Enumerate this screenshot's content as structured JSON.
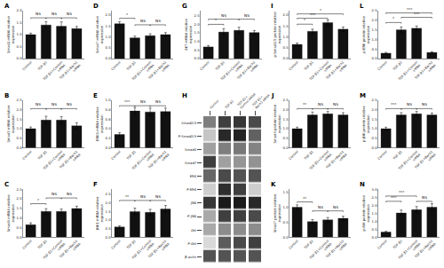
{
  "chart_data": [
    {
      "type": "bar",
      "title": "A",
      "ylabel": "Smad2 mRNA relative\nexpression",
      "categories": [
        "Control",
        "TGF-β1",
        "TGF-β1+Control\nsiRNA",
        "TGF-β1+Bach1\nsiRNA"
      ],
      "values": [
        1.0,
        1.4,
        1.35,
        1.25
      ],
      "errors": [
        0.06,
        0.14,
        0.18,
        0.09
      ],
      "color": "#111111",
      "grid": false,
      "ylim": [
        0,
        2.0
      ],
      "yticks": [
        {
          "value": 0,
          "label": "0.0"
        },
        0.5,
        {
          "value": 1.0,
          "label": "1.0"
        },
        1.5,
        {
          "value": 2.0,
          "label": "2.0"
        }
      ],
      "annotations": [
        {
          "from": "Control",
          "to": "TGF-β1",
          "y": 1.7,
          "text": "NS"
        },
        {
          "from": "TGF-β1",
          "to": "TGF-β1+Control\nsiRNA",
          "y": 1.7,
          "text": "NS"
        },
        {
          "from": "TGF-β1+Control\nsiRNA",
          "to": "TGF-β1+Bach1\nsiRNA",
          "y": 1.7,
          "text": "NS"
        }
      ]
    },
    {
      "type": "bar",
      "title": "B",
      "ylabel": "Smad3 mRNA relative\nexpression",
      "categories": [
        "Control",
        "TGF-β1",
        "TGF-β1+Control\nsiRNA",
        "TGF-β1+Bach1\nsiRNA"
      ],
      "values": [
        1.0,
        1.45,
        1.45,
        1.15
      ],
      "errors": [
        0.09,
        0.2,
        0.18,
        0.16
      ],
      "color": "#111111",
      "grid": false,
      "ylim": [
        0,
        2.5
      ],
      "yticks": [
        {
          "value": 0,
          "label": "0.0"
        },
        0.5,
        {
          "value": 1.0,
          "label": "1.0"
        },
        1.5,
        {
          "value": 2.0,
          "label": "2.0"
        },
        2.5
      ],
      "annotations": [
        {
          "from": "Control",
          "to": "TGF-β1",
          "y": 2.05,
          "text": "NS"
        },
        {
          "from": "TGF-β1",
          "to": "TGF-β1+Control\nsiRNA",
          "y": 2.05,
          "text": "NS"
        },
        {
          "from": "TGF-β1+Control\nsiRNA",
          "to": "TGF-β1+Bach1\nsiRNA",
          "y": 2.05,
          "text": "NS"
        }
      ]
    },
    {
      "type": "bar",
      "title": "C",
      "ylabel": "Smad4 mRNA relative\nexpression",
      "categories": [
        "Control",
        "TGF-β1",
        "TGF-β1+Control\nsiRNA",
        "TGF-β1+Bach1\nsiRNA"
      ],
      "values": [
        0.65,
        1.35,
        1.35,
        1.5
      ],
      "errors": [
        0.1,
        0.14,
        0.12,
        0.12
      ],
      "color": "#111111",
      "grid": false,
      "ylim": [
        0,
        2.5
      ],
      "yticks": [
        {
          "value": 0,
          "label": "0.0"
        },
        0.5,
        {
          "value": 1.0,
          "label": "1.0"
        },
        1.5,
        {
          "value": 2.0,
          "label": "2.0"
        },
        2.5
      ],
      "annotations": [
        {
          "from": "Control",
          "to": "TGF-β1",
          "y": 1.75,
          "text": "*"
        },
        {
          "from": "TGF-β1",
          "to": "TGF-β1+Control\nsiRNA",
          "y": 2.05,
          "text": "NS"
        },
        {
          "from": "TGF-β1+Control\nsiRNA",
          "to": "TGF-β1+Bach1\nsiRNA",
          "y": 2.05,
          "text": "NS"
        }
      ]
    },
    {
      "type": "bar",
      "title": "D",
      "ylabel": "Smad7 mRNA relative\nexpression",
      "categories": [
        "Control",
        "TGF-β1",
        "TGF-β1+Control\nsiRNA",
        "TGF-β1+Bach1\nsiRNA"
      ],
      "values": [
        1.6,
        0.95,
        1.05,
        1.1
      ],
      "errors": [
        0.1,
        0.08,
        0.09,
        0.09
      ],
      "color": "#111111",
      "grid": false,
      "ylim": [
        0,
        2.2
      ],
      "yticks": [
        {
          "value": 0,
          "label": "0.0"
        },
        0.5,
        {
          "value": 1.0,
          "label": "1.0"
        },
        1.5,
        {
          "value": 2.0,
          "label": "2.0"
        }
      ],
      "annotations": [
        {
          "from": "Control",
          "to": "TGF-β1",
          "y": 1.85,
          "text": "*"
        },
        {
          "from": "TGF-β1",
          "to": "TGF-β1+Control\nsiRNA",
          "y": 1.55,
          "text": "NS"
        },
        {
          "from": "TGF-β1+Control\nsiRNA",
          "to": "TGF-β1+Bach1\nsiRNA",
          "y": 1.55,
          "text": "NS"
        }
      ]
    },
    {
      "type": "bar",
      "title": "E",
      "ylabel": "ERK1 mRNA relative\nexpression",
      "categories": [
        "Control",
        "TGF-β1",
        "TGF-β1+Control\nsiRNA",
        "TGF-β1+Bach1\nsiRNA"
      ],
      "values": [
        0.28,
        0.77,
        0.75,
        0.76
      ],
      "errors": [
        0.04,
        0.07,
        0.08,
        0.07
      ],
      "color": "#111111",
      "grid": false,
      "ylim": [
        0,
        1.0
      ],
      "yticks": [
        {
          "value": 0,
          "label": "0.0"
        },
        0.2,
        0.4,
        0.6,
        0.8,
        {
          "value": 1.0,
          "label": "1.0"
        }
      ],
      "annotations": [
        {
          "from": "Control",
          "to": "TGF-β1",
          "y": 0.88,
          "text": "***"
        },
        {
          "from": "TGF-β1",
          "to": "TGF-β1+Control\nsiRNA",
          "y": 0.88,
          "text": "NS"
        },
        {
          "from": "TGF-β1+Control\nsiRNA",
          "to": "TGF-β1+Bach1\nsiRNA",
          "y": 0.88,
          "text": "NS"
        }
      ]
    },
    {
      "type": "bar",
      "title": "F",
      "ylabel": "JNK1 mRNA relative\nexpression",
      "categories": [
        "Control",
        "TGF-β1",
        "TGF-β1+Control\nsiRNA",
        "TGF-β1+Bach1\nsiRNA"
      ],
      "values": [
        0.6,
        1.5,
        1.45,
        1.65
      ],
      "errors": [
        0.07,
        0.2,
        0.18,
        0.2
      ],
      "color": "#111111",
      "grid": false,
      "ylim": [
        0,
        2.8
      ],
      "yticks": [
        {
          "value": 0,
          "label": "0.0"
        },
        0.5,
        {
          "value": 1.0,
          "label": "1.0"
        },
        1.5,
        {
          "value": 2.0,
          "label": "2.0"
        },
        2.5
      ],
      "annotations": [
        {
          "from": "Control",
          "to": "TGF-β1",
          "y": 2.15,
          "text": "**"
        },
        {
          "from": "TGF-β1",
          "to": "TGF-β1+Control\nsiRNA",
          "y": 2.15,
          "text": "NS"
        },
        {
          "from": "TGF-β1+Control\nsiRNA",
          "to": "TGF-β1+Bach1\nsiRNA",
          "y": 2.15,
          "text": "NS"
        }
      ]
    },
    {
      "type": "bar",
      "title": "G",
      "ylabel": "AKT mRNA relative\nexpression",
      "categories": [
        "Control",
        "TGF-β1",
        "TGF-β1+Control\nsiRNA",
        "TGF-β1+Bach1\nsiRNA"
      ],
      "values": [
        0.68,
        1.55,
        1.65,
        1.52
      ],
      "errors": [
        0.08,
        0.2,
        0.18,
        0.12
      ],
      "color": "#111111",
      "grid": false,
      "ylim": [
        0,
        2.8
      ],
      "yticks": [
        {
          "value": 0,
          "label": "0.0"
        },
        0.5,
        {
          "value": 1.0,
          "label": "1.0"
        },
        1.5,
        {
          "value": 2.0,
          "label": "2.0"
        },
        2.5
      ],
      "annotations": [
        {
          "from": "Control",
          "to": "TGF-β1",
          "y": 2.0,
          "text": "*"
        },
        {
          "from": "Control",
          "to": "TGF-β1+Control\nsiRNA",
          "y": 2.3,
          "text": "NS"
        },
        {
          "from": "TGF-β1+Control\nsiRNA",
          "to": "TGF-β1+Bach1\nsiRNA",
          "y": 2.3,
          "text": "NS"
        }
      ]
    },
    {
      "type": "heatmap",
      "title": "H",
      "x": [
        "Control",
        "TGF-β1",
        "TGF-β1+\nControl siRNA",
        "TGF-β1+\nBach1 siRNA"
      ],
      "y": [
        "Smad2/3",
        "P-Smad2/3",
        "Smad4",
        "Smad7",
        "ERK",
        "P-ERK",
        "JNK",
        "P-JNK",
        "Akt",
        "P-Akt",
        "β-actin"
      ],
      "cells": [
        [
          0.5,
          0.72,
          0.75,
          0.68
        ],
        [
          0.25,
          0.8,
          0.82,
          0.6
        ],
        [
          0.38,
          0.5,
          0.52,
          0.48
        ],
        [
          0.72,
          0.38,
          0.42,
          0.43
        ],
        [
          0.58,
          0.68,
          0.65,
          0.65
        ],
        [
          0.22,
          0.78,
          0.72,
          0.22
        ],
        [
          0.75,
          0.85,
          0.85,
          0.8
        ],
        [
          0.35,
          0.72,
          0.72,
          0.68
        ],
        [
          0.35,
          0.45,
          0.45,
          0.45
        ],
        [
          0.18,
          0.62,
          0.68,
          0.72
        ],
        [
          0.65,
          0.65,
          0.65,
          0.65
        ]
      ]
    },
    {
      "type": "bar",
      "title": "I",
      "ylabel": "p-Smad2/3 protein relative\nexpression",
      "categories": [
        "Control",
        "TGF-β1",
        "TGF-β1+Control\nsiRNA",
        "TGF-β1+Bach1\nsiRNA"
      ],
      "values": [
        0.65,
        1.25,
        1.65,
        1.35
      ],
      "errors": [
        0.06,
        0.1,
        0.12,
        0.1
      ],
      "color": "#111111",
      "grid": false,
      "ylim": [
        0,
        2.2
      ],
      "yticks": [
        {
          "value": 0,
          "label": "0.0"
        },
        0.5,
        {
          "value": 1.0,
          "label": "1.0"
        },
        1.5,
        {
          "value": 2.0,
          "label": "2.0"
        }
      ],
      "annotations": [
        {
          "from": "Control",
          "to": "TGF-β1",
          "y": 1.58,
          "text": "*"
        },
        {
          "from": "Control",
          "to": "TGF-β1+Control\nsiRNA",
          "y": 1.85,
          "text": "***"
        },
        {
          "from": "Control",
          "to": "TGF-β1+Bach1\nsiRNA",
          "y": 2.05,
          "text": "*"
        }
      ]
    },
    {
      "type": "bar",
      "title": "J",
      "ylabel": "Smad4 protein relative\nexpression",
      "categories": [
        "Control",
        "TGF-β1",
        "TGF-β1+Control\nsiRNA",
        "TGF-β1+Bach1\nsiRNA"
      ],
      "values": [
        1.0,
        1.72,
        1.78,
        1.72
      ],
      "errors": [
        0.08,
        0.15,
        0.12,
        0.12
      ],
      "color": "#111111",
      "grid": false,
      "ylim": [
        0,
        2.5
      ],
      "yticks": [
        {
          "value": 0,
          "label": "0.0"
        },
        0.5,
        {
          "value": 1.0,
          "label": "1.0"
        },
        1.5,
        {
          "value": 2.0,
          "label": "2.0"
        },
        2.5
      ],
      "annotations": [
        {
          "from": "Control",
          "to": "TGF-β1",
          "y": 2.05,
          "text": "**"
        },
        {
          "from": "TGF-β1",
          "to": "TGF-β1+Control\nsiRNA",
          "y": 2.05,
          "text": "NS"
        },
        {
          "from": "TGF-β1+Control\nsiRNA",
          "to": "TGF-β1+Bach1\nsiRNA",
          "y": 2.05,
          "text": "NS"
        }
      ]
    },
    {
      "type": "bar",
      "title": "K",
      "ylabel": "Smad7 protein relative\nexpression",
      "categories": [
        "Control",
        "TGF-β1",
        "TGF-β1+Control\nsiRNA",
        "TGF-β1+Bach1\nsiRNA"
      ],
      "values": [
        1.0,
        0.52,
        0.58,
        0.63
      ],
      "errors": [
        0.08,
        0.07,
        0.08,
        0.07
      ],
      "color": "#111111",
      "grid": false,
      "ylim": [
        0,
        1.6
      ],
      "yticks": [
        {
          "value": 0,
          "label": "0.0"
        },
        0.5,
        {
          "value": 1.0,
          "label": "1.0"
        },
        1.5
      ],
      "annotations": [
        {
          "from": "Control",
          "to": "TGF-β1",
          "y": 1.18,
          "text": "**"
        },
        {
          "from": "TGF-β1",
          "to": "TGF-β1+Control\nsiRNA",
          "y": 0.88,
          "text": "NS"
        },
        {
          "from": "TGF-β1+Control\nsiRNA",
          "to": "TGF-β1+Bach1\nsiRNA",
          "y": 0.88,
          "text": "NS"
        }
      ]
    },
    {
      "type": "bar",
      "title": "L",
      "ylabel": "p-ERK protein relative\nexpression",
      "categories": [
        "Control",
        "TGF-β1",
        "TGF-β1+Control\nsiRNA",
        "TGF-β1+Bach1\nsiRNA"
      ],
      "values": [
        0.28,
        1.5,
        1.58,
        0.32
      ],
      "errors": [
        0.04,
        0.15,
        0.12,
        0.04
      ],
      "color": "#111111",
      "grid": false,
      "ylim": [
        0,
        2.5
      ],
      "yticks": [
        {
          "value": 0,
          "label": "0.0"
        },
        0.5,
        {
          "value": 1.0,
          "label": "1.0"
        },
        1.5,
        {
          "value": 2.0,
          "label": "2.0"
        },
        2.5
      ],
      "annotations": [
        {
          "from": "Control",
          "to": "TGF-β1",
          "y": 1.88,
          "text": "*"
        },
        {
          "from": "TGF-β1",
          "to": "TGF-β1+Bach1\nsiRNA",
          "y": 2.15,
          "text": "***"
        },
        {
          "from": "Control",
          "to": "TGF-β1+Bach1\nsiRNA",
          "y": 2.38,
          "text": "***"
        }
      ]
    },
    {
      "type": "bar",
      "title": "M",
      "ylabel": "p-JNK protein relative\nexpression",
      "categories": [
        "Control",
        "TGF-β1",
        "TGF-β1+Control\nsiRNA",
        "TGF-β1+Bach1\nsiRNA"
      ],
      "values": [
        1.0,
        1.72,
        1.78,
        1.72
      ],
      "errors": [
        0.08,
        0.12,
        0.12,
        0.1
      ],
      "color": "#111111",
      "grid": false,
      "ylim": [
        0,
        2.5
      ],
      "yticks": [
        {
          "value": 0,
          "label": "0.0"
        },
        0.5,
        {
          "value": 1.0,
          "label": "1.0"
        },
        1.5,
        {
          "value": 2.0,
          "label": "2.0"
        },
        2.5
      ],
      "annotations": [
        {
          "from": "Control",
          "to": "TGF-β1",
          "y": 2.05,
          "text": "***"
        },
        {
          "from": "TGF-β1",
          "to": "TGF-β1+Control\nsiRNA",
          "y": 2.05,
          "text": "NS"
        },
        {
          "from": "TGF-β1+Control\nsiRNA",
          "to": "TGF-β1+Bach1\nsiRNA",
          "y": 2.05,
          "text": "NS"
        }
      ]
    },
    {
      "type": "bar",
      "title": "N",
      "ylabel": "p-Akt protein relative\nexpression",
      "categories": [
        "Control",
        "TGF-β1",
        "TGF-β1+Control\nsiRNA",
        "TGF-β1+Bach1\nsiRNA"
      ],
      "values": [
        0.32,
        1.52,
        1.72,
        1.88
      ],
      "errors": [
        0.05,
        0.18,
        0.2,
        0.22
      ],
      "color": "#111111",
      "grid": false,
      "ylim": [
        0,
        3.0
      ],
      "yticks": [
        {
          "value": 0,
          "label": "0.0"
        },
        0.5,
        {
          "value": 1.0,
          "label": "1.0"
        },
        1.5,
        {
          "value": 2.0,
          "label": "2.0"
        },
        2.5,
        {
          "value": 3.0,
          "label": "3.0"
        }
      ],
      "annotations": [
        {
          "from": "Control",
          "to": "TGF-β1",
          "y": 2.25,
          "text": "***"
        },
        {
          "from": "Control",
          "to": "TGF-β1+Control\nsiRNA",
          "y": 2.58,
          "text": "***"
        },
        {
          "from": "TGF-β1+Control\nsiRNA",
          "to": "TGF-β1+Bach1\nsiRNA",
          "y": 2.25,
          "text": "NS"
        }
      ]
    }
  ]
}
